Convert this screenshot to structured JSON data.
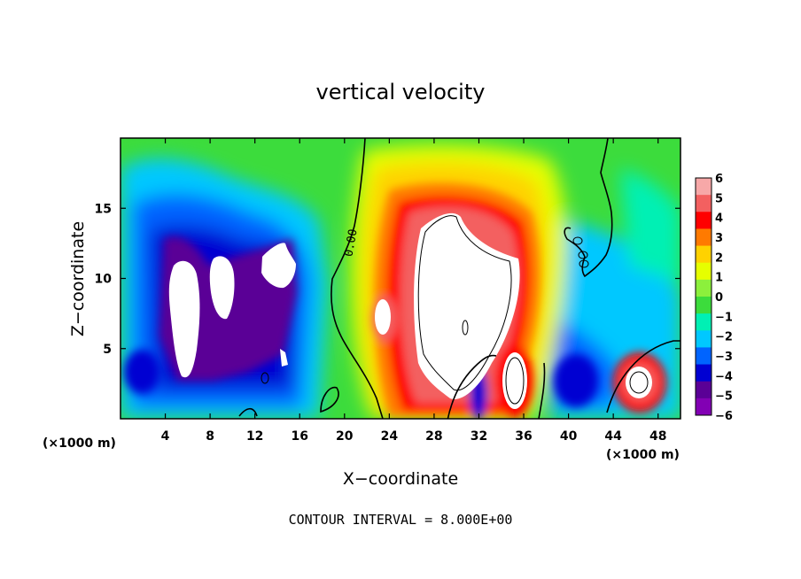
{
  "chart_data": {
    "type": "heatmap",
    "title": "vertical velocity",
    "xlabel": "X−coordinate",
    "ylabel": "Z−coordinate",
    "x_unit_label": "(×1000 m)",
    "x_unit_label_right": "(×1000 m)",
    "footer": "CONTOUR INTERVAL = 8.000E+00",
    "xlim": [
      0,
      50
    ],
    "ylim": [
      0,
      20
    ],
    "x_ticks": [
      "4",
      "8",
      "12",
      "16",
      "20",
      "24",
      "28",
      "32",
      "36",
      "40",
      "44",
      "48"
    ],
    "x_tick_values": [
      4,
      8,
      12,
      16,
      20,
      24,
      28,
      32,
      36,
      40,
      44,
      48
    ],
    "y_ticks": [
      "5",
      "10",
      "15"
    ],
    "y_tick_values": [
      5,
      10,
      15
    ],
    "contour_label": "0.00",
    "colorbar": {
      "labels": [
        "6",
        "5",
        "4",
        "3",
        "2",
        "1",
        "0",
        "−1",
        "−2",
        "−3",
        "−4",
        "−5",
        "−6"
      ],
      "values": [
        6,
        5,
        4,
        3,
        2,
        1,
        0,
        -1,
        -2,
        -3,
        -4,
        -5,
        -6
      ],
      "colors": [
        "#f7a8a8",
        "#f36060",
        "#ff0000",
        "#ff7a00",
        "#ffd200",
        "#e6ff00",
        "#8cf03c",
        "#3cdc3c",
        "#00f0b4",
        "#00c8ff",
        "#0064ff",
        "#0000d2",
        "#5a0096",
        "#8200b4"
      ]
    },
    "features": [
      {
        "x": 5.5,
        "z": 8.5,
        "w": -7
      },
      {
        "x": 9,
        "z": 10,
        "w": -7
      },
      {
        "x": 14,
        "z": 11.5,
        "w": -7
      },
      {
        "x": 3,
        "z": 3,
        "w": -5
      },
      {
        "x": 10,
        "z": 4,
        "w": -5
      },
      {
        "x": 12,
        "z": 12,
        "w": -5
      },
      {
        "x": 30,
        "z": 9.5,
        "w": 8
      },
      {
        "x": 26,
        "z": 7,
        "w": 6
      },
      {
        "x": 34.7,
        "z": 3,
        "w": 8
      },
      {
        "x": 46,
        "z": 2.5,
        "w": 7
      },
      {
        "x": 32,
        "z": 2,
        "w": -5
      },
      {
        "x": 41,
        "z": 3,
        "w": -4
      },
      {
        "x": 47,
        "z": 10,
        "w": -2
      },
      {
        "x": 2,
        "z": 13,
        "w": -2
      }
    ]
  }
}
